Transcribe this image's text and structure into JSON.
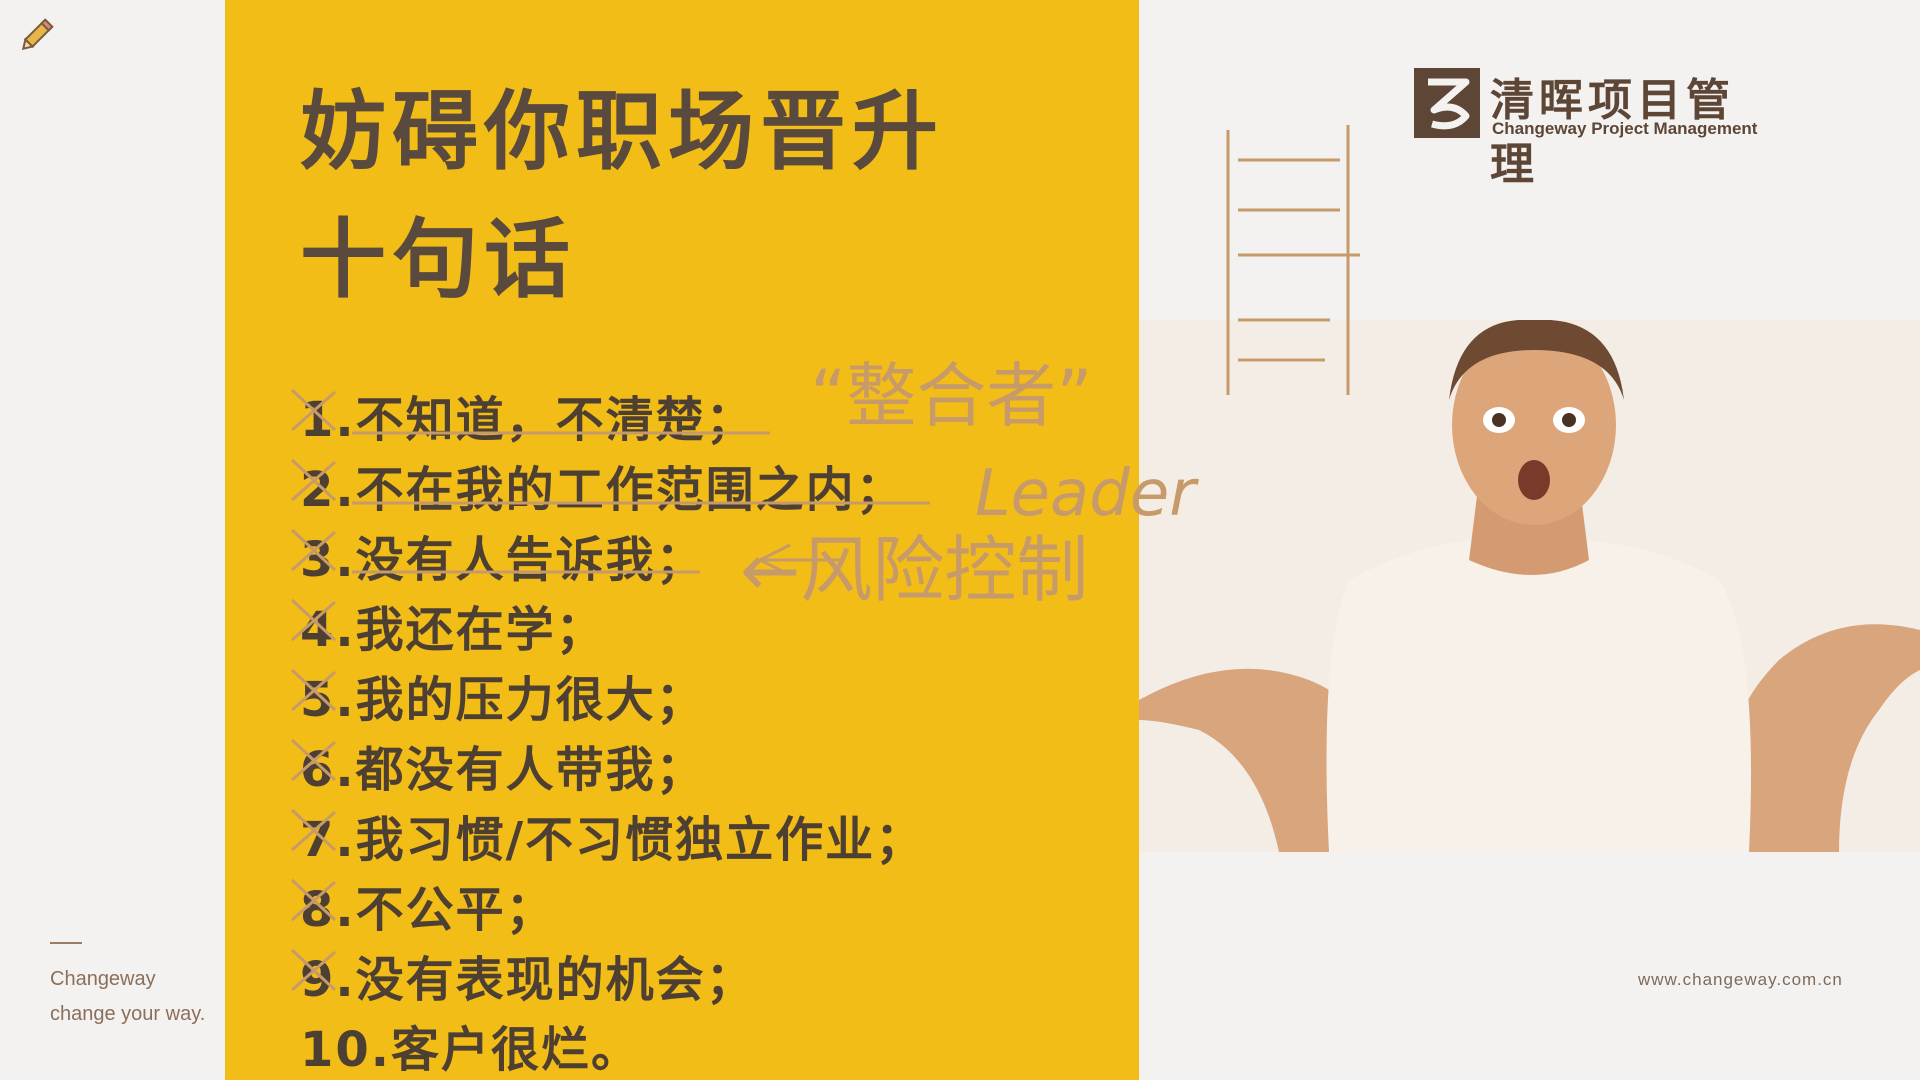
{
  "sidebar": {
    "brand": "Changeway",
    "tagline": "change your way."
  },
  "slide": {
    "title_line1": "妨碍你职场晋升",
    "title_line2": "十句话",
    "items": [
      "1.不知道，不清楚；",
      "2.不在我的工作范围之内；",
      "3.没有人告诉我；",
      "4.我还在学；",
      "5.我的压力很大；",
      "6.都没有人带我；",
      "7.我习惯/不习惯独立作业；",
      "8.不公平；",
      "9.没有表现的机会；",
      "10.客户很烂。"
    ]
  },
  "logo": {
    "name_cn": "清晖项目管理",
    "name_en": "Changeway Project Management"
  },
  "footer": {
    "website": "www.changeway.com.cn"
  },
  "annotations": {
    "quote_text": "“整合者”",
    "leader": "Leader",
    "risk_control": "←风险控制"
  },
  "colors": {
    "panel_yellow": "#f2bd16",
    "title_brown": "#5a4a3d",
    "ink_brown": "#c79a6a"
  },
  "icons": {
    "tool": "pencil-icon",
    "logo_mark": "changeway-logo-icon"
  }
}
